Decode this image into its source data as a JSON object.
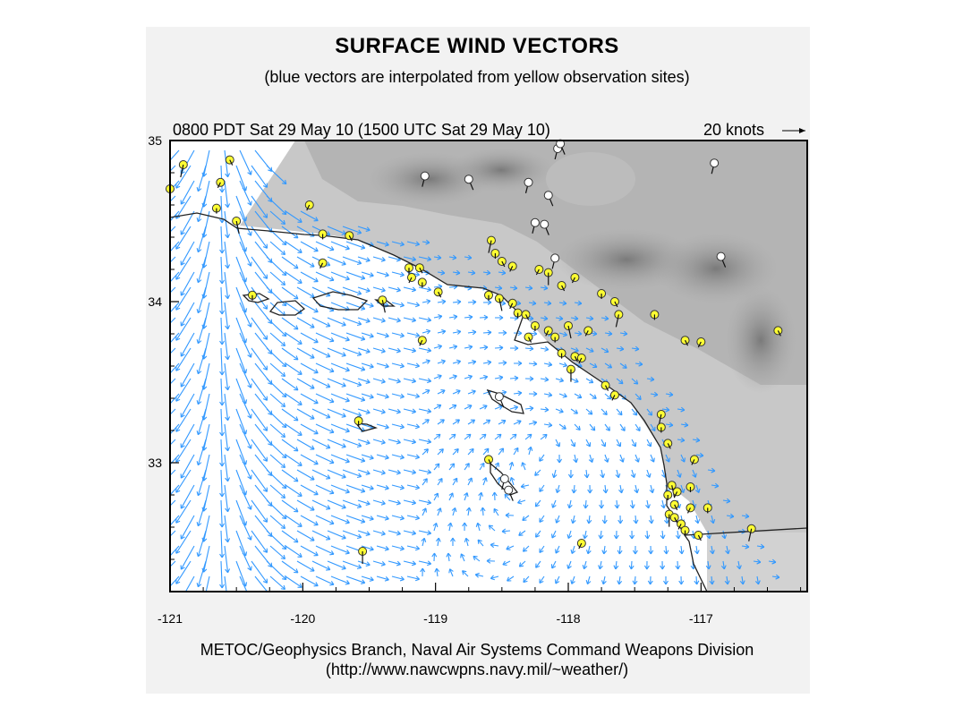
{
  "title": "SURFACE WIND VECTORS",
  "subtitle": "(blue vectors are interpolated from yellow observation sites)",
  "time_label": "0800 PDT Sat 29 May 10 (1500 UTC Sat 29 May 10)",
  "scale_label": "20 knots",
  "footer_line1": "METOC/Geophysics Branch, Naval Air Systems Command Weapons Division",
  "footer_line2": "(http://www.nawcwpns.navy.mil/~weather/)",
  "axes": {
    "x_ticks": [
      "-121",
      "-120",
      "-119",
      "-118",
      "-117"
    ],
    "y_ticks": [
      "35",
      "34",
      "33"
    ],
    "lon_range": [
      -121,
      -116.2
    ],
    "lat_range": [
      32.2,
      35
    ]
  },
  "colors": {
    "interpolated_vector": "#3399ff",
    "observation_site": "#ffff33",
    "coastline": "#000000",
    "land_shading": "#9a9a9a"
  },
  "observation_sites": [
    {
      "lon": -120.9,
      "lat": 34.85
    },
    {
      "lon": -121.0,
      "lat": 34.7
    },
    {
      "lon": -120.55,
      "lat": 34.88
    },
    {
      "lon": -120.62,
      "lat": 34.74
    },
    {
      "lon": -120.65,
      "lat": 34.58
    },
    {
      "lon": -120.5,
      "lat": 34.5
    },
    {
      "lon": -119.95,
      "lat": 34.6
    },
    {
      "lon": -119.85,
      "lat": 34.42
    },
    {
      "lon": -119.65,
      "lat": 34.41
    },
    {
      "lon": -119.85,
      "lat": 34.24
    },
    {
      "lon": -119.2,
      "lat": 34.21
    },
    {
      "lon": -119.12,
      "lat": 34.21
    },
    {
      "lon": -119.18,
      "lat": 34.15
    },
    {
      "lon": -119.1,
      "lat": 34.12
    },
    {
      "lon": -118.98,
      "lat": 34.06
    },
    {
      "lon": -118.58,
      "lat": 34.38
    },
    {
      "lon": -118.55,
      "lat": 34.3
    },
    {
      "lon": -118.5,
      "lat": 34.25
    },
    {
      "lon": -118.42,
      "lat": 34.22
    },
    {
      "lon": -118.6,
      "lat": 34.04
    },
    {
      "lon": -118.52,
      "lat": 34.02
    },
    {
      "lon": -118.42,
      "lat": 33.99
    },
    {
      "lon": -118.38,
      "lat": 33.93
    },
    {
      "lon": -118.32,
      "lat": 33.92
    },
    {
      "lon": -118.22,
      "lat": 34.2
    },
    {
      "lon": -118.15,
      "lat": 34.18
    },
    {
      "lon": -118.05,
      "lat": 34.1
    },
    {
      "lon": -117.95,
      "lat": 34.15
    },
    {
      "lon": -117.75,
      "lat": 34.05
    },
    {
      "lon": -117.65,
      "lat": 34.0
    },
    {
      "lon": -117.62,
      "lat": 33.92
    },
    {
      "lon": -118.25,
      "lat": 33.85
    },
    {
      "lon": -118.3,
      "lat": 33.78
    },
    {
      "lon": -118.15,
      "lat": 33.82
    },
    {
      "lon": -118.1,
      "lat": 33.78
    },
    {
      "lon": -118.0,
      "lat": 33.85
    },
    {
      "lon": -117.85,
      "lat": 33.82
    },
    {
      "lon": -118.05,
      "lat": 33.68
    },
    {
      "lon": -117.95,
      "lat": 33.66
    },
    {
      "lon": -117.9,
      "lat": 33.65
    },
    {
      "lon": -117.98,
      "lat": 33.58
    },
    {
      "lon": -117.72,
      "lat": 33.48
    },
    {
      "lon": -117.65,
      "lat": 33.42
    },
    {
      "lon": -117.35,
      "lat": 33.92
    },
    {
      "lon": -117.12,
      "lat": 33.76
    },
    {
      "lon": -117.3,
      "lat": 33.3
    },
    {
      "lon": -117.3,
      "lat": 33.22
    },
    {
      "lon": -117.25,
      "lat": 33.12
    },
    {
      "lon": -117.05,
      "lat": 33.02
    },
    {
      "lon": -117.08,
      "lat": 32.85
    },
    {
      "lon": -117.22,
      "lat": 32.86
    },
    {
      "lon": -117.18,
      "lat": 32.82
    },
    {
      "lon": -117.25,
      "lat": 32.8
    },
    {
      "lon": -117.2,
      "lat": 32.74
    },
    {
      "lon": -117.08,
      "lat": 32.72
    },
    {
      "lon": -117.24,
      "lat": 32.68
    },
    {
      "lon": -117.2,
      "lat": 32.66
    },
    {
      "lon": -117.15,
      "lat": 32.62
    },
    {
      "lon": -117.12,
      "lat": 32.58
    },
    {
      "lon": -117.02,
      "lat": 32.55
    },
    {
      "lon": -116.62,
      "lat": 32.59
    },
    {
      "lon": -116.95,
      "lat": 32.72
    },
    {
      "lon": -116.42,
      "lat": 33.82
    },
    {
      "lon": -117.0,
      "lat": 33.75
    },
    {
      "lon": -120.38,
      "lat": 34.04
    },
    {
      "lon": -119.4,
      "lat": 34.01
    },
    {
      "lon": -119.1,
      "lat": 33.76
    },
    {
      "lon": -119.58,
      "lat": 33.26
    },
    {
      "lon": -118.6,
      "lat": 33.02
    },
    {
      "lon": -117.9,
      "lat": 32.5
    },
    {
      "lon": -119.55,
      "lat": 32.45
    }
  ],
  "inland_sites": [
    {
      "lon": -119.08,
      "lat": 34.78
    },
    {
      "lon": -118.75,
      "lat": 34.76
    },
    {
      "lon": -118.3,
      "lat": 34.74
    },
    {
      "lon": -118.15,
      "lat": 34.66
    },
    {
      "lon": -118.25,
      "lat": 34.49
    },
    {
      "lon": -118.18,
      "lat": 34.48
    },
    {
      "lon": -118.08,
      "lat": 34.95
    },
    {
      "lon": -118.06,
      "lat": 34.98
    },
    {
      "lon": -118.1,
      "lat": 34.27
    },
    {
      "lon": -116.85,
      "lat": 34.28
    },
    {
      "lon": -116.9,
      "lat": 34.86
    },
    {
      "lon": -118.52,
      "lat": 33.41
    },
    {
      "lon": -118.48,
      "lat": 32.9
    },
    {
      "lon": -118.45,
      "lat": 32.83
    }
  ]
}
